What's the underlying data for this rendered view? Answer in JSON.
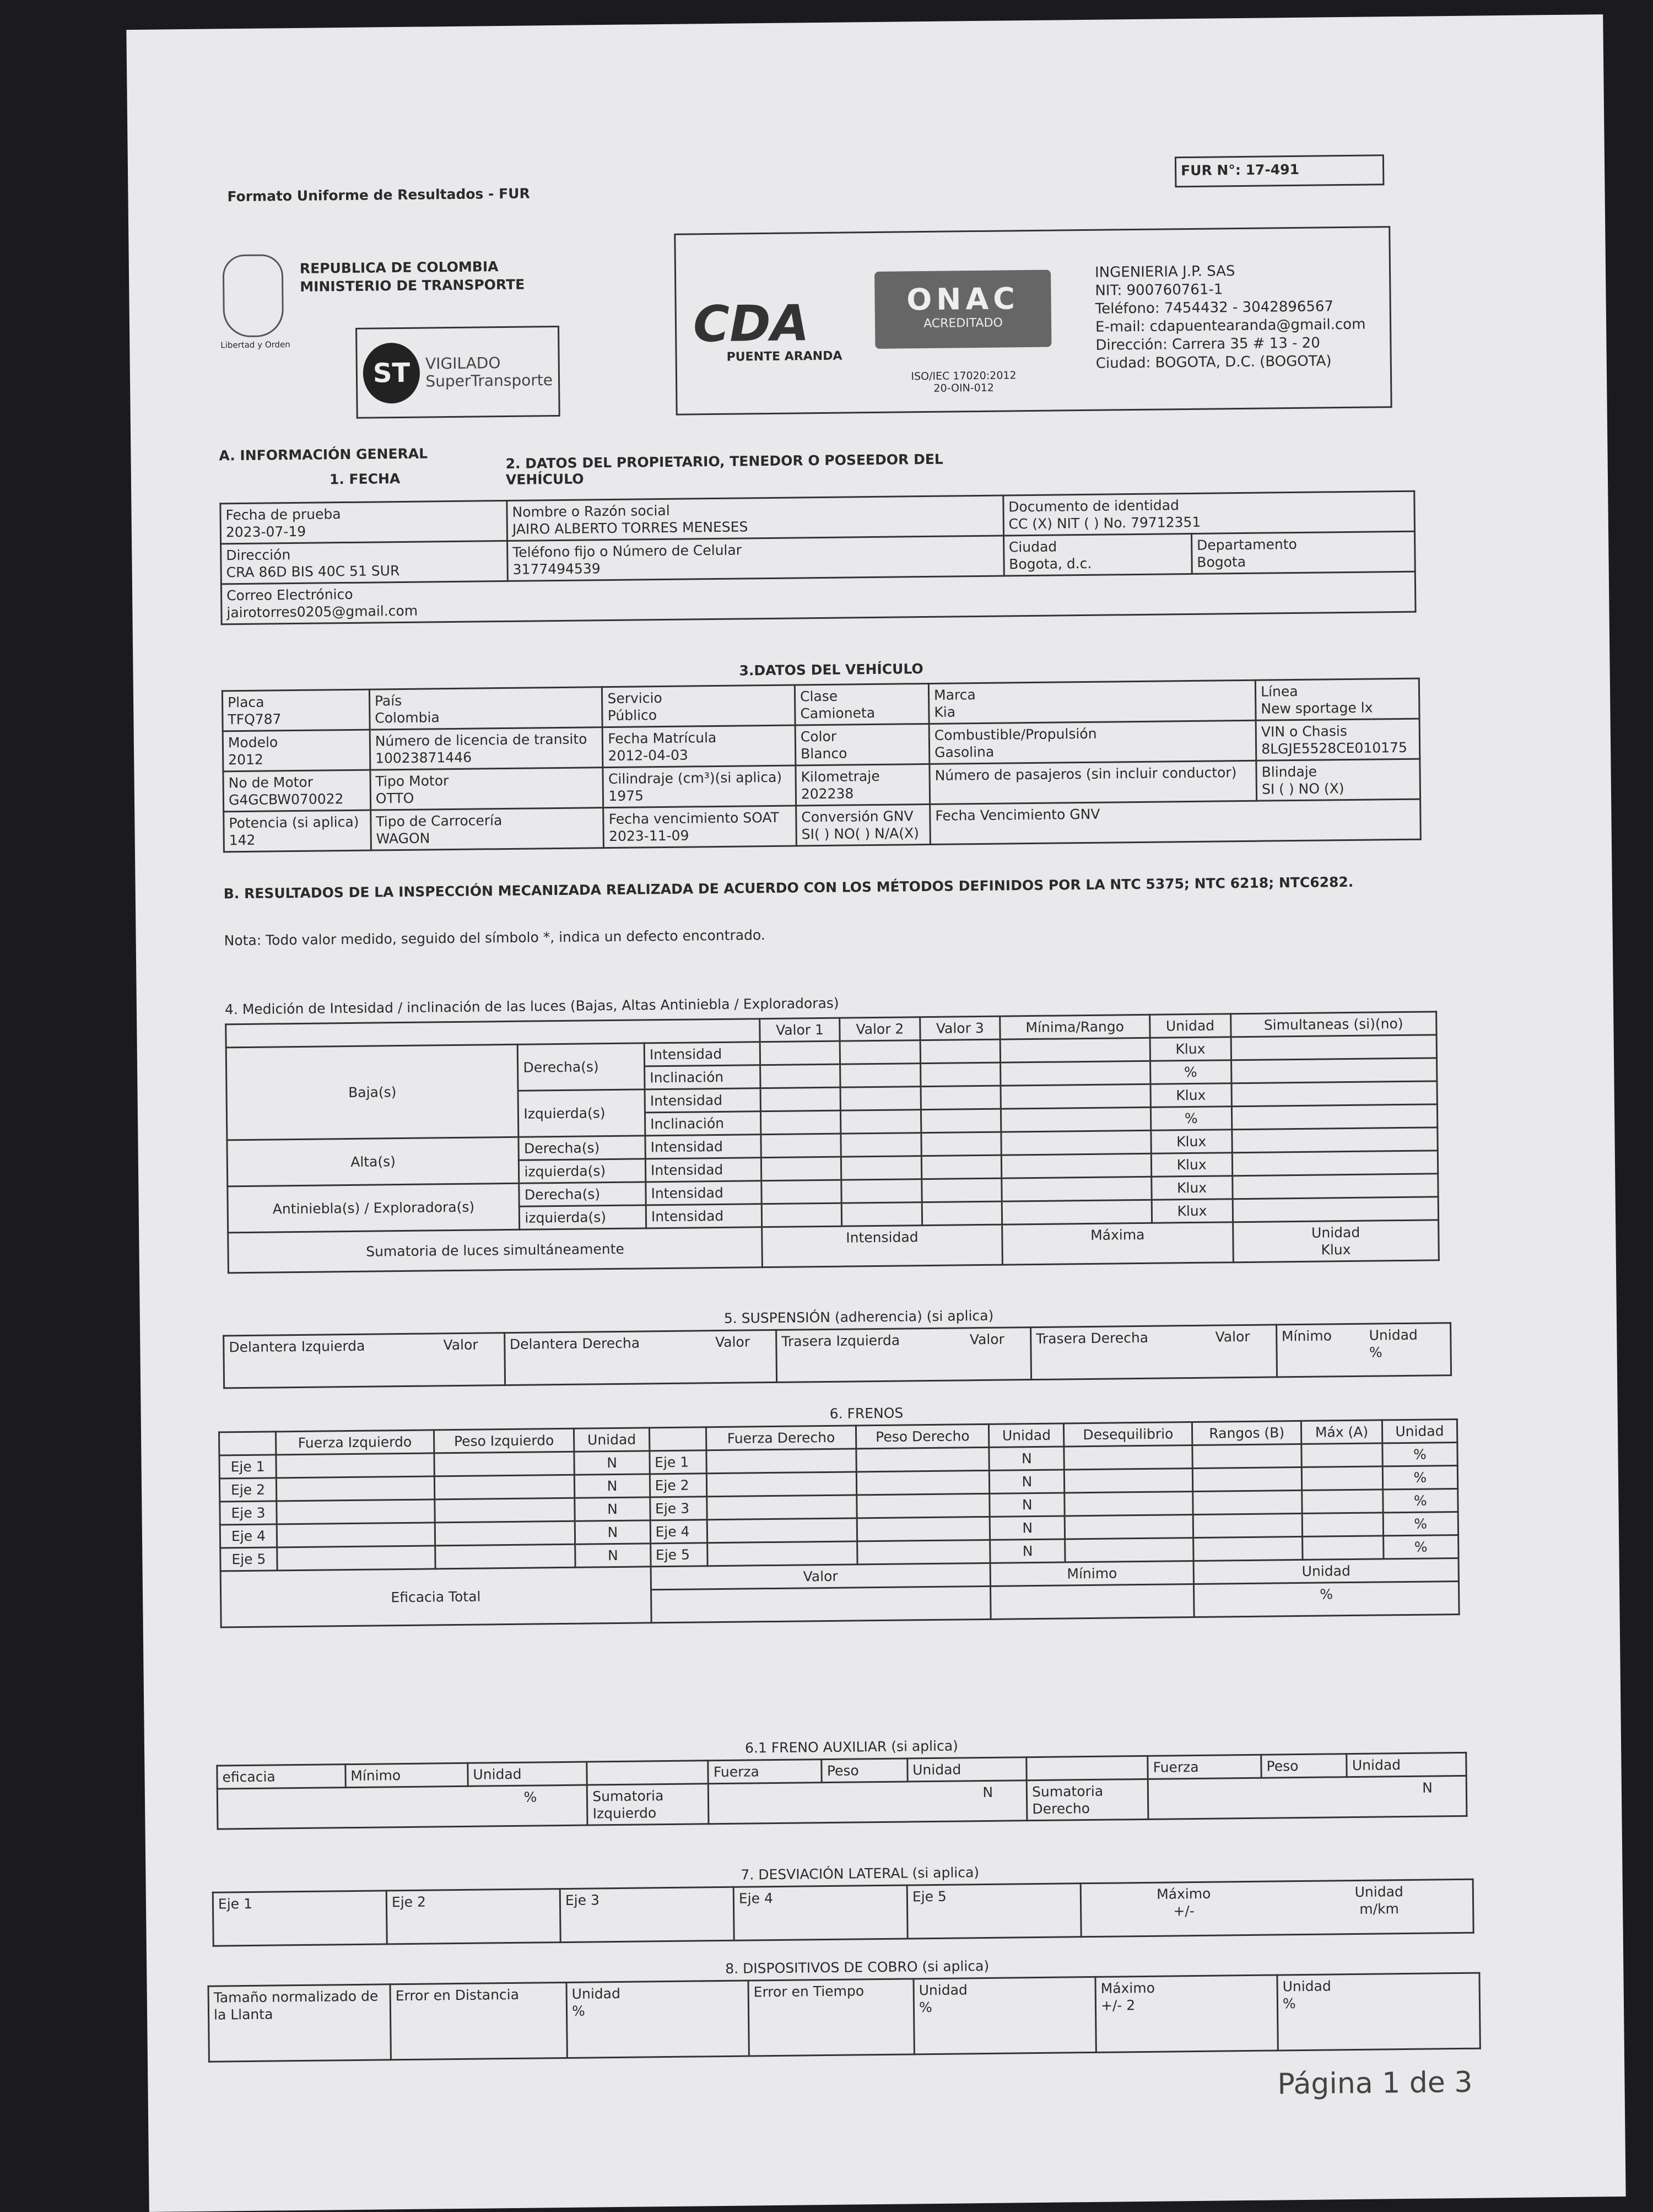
{
  "header": {
    "title": "Formato Uniforme de Resultados - FUR",
    "fur_number": "FUR N°: 17-491",
    "gov_line1": "REPUBLICA DE COLOMBIA",
    "gov_line2": "MINISTERIO DE TRANSPORTE",
    "crest_caption": "Libertad y Orden",
    "st_logo": "ST",
    "st_line1": "VIGILADO",
    "st_line2": "SuperTransporte",
    "cda_logo": "CDA",
    "cda_sub": "PUENTE ARANDA",
    "onac_logo": "ONAC",
    "onac_sub": "ACREDITADO",
    "iso_line1": "ISO/IEC 17020:2012",
    "iso_line2": "20-OIN-012",
    "company": [
      "INGENIERIA J.P. SAS",
      "NIT: 900760761-1",
      "Teléfono: 7454432 - 3042896567",
      "E-mail: cdapuentearanda@gmail.com",
      "Dirección: Carrera 35 # 13 - 20",
      "Ciudad: BOGOTA, D.C. (BOGOTA)"
    ]
  },
  "section_a": {
    "title": "A. INFORMACIÓN GENERAL",
    "fecha_title": "1. FECHA",
    "owner_title": "2. DATOS DEL PROPIETARIO, TENEDOR O POSEEDOR DEL VEHÍCULO",
    "fields": [
      {
        "label": "Fecha de prueba",
        "value": "2023-07-19"
      },
      {
        "label": "Nombre o Razón social",
        "value": "JAIRO ALBERTO TORRES MENESES"
      },
      {
        "label": "Documento de identidad",
        "value": "CC (X) NIT ( ) No. 79712351"
      },
      {
        "label": "Dirección",
        "value": "CRA 86D BIS 40C 51 SUR"
      },
      {
        "label": "Teléfono fijo o Número de Celular",
        "value": "3177494539"
      },
      {
        "label": "Ciudad",
        "value": "Bogota, d.c."
      },
      {
        "label": "Departamento",
        "value": "Bogota"
      },
      {
        "label": "Correo Electrónico",
        "value": "jairotorres0205@gmail.com"
      }
    ]
  },
  "vehicle": {
    "title": "3.DATOS DEL VEHÍCULO",
    "fields": [
      {
        "label": "Placa",
        "value": "TFQ787"
      },
      {
        "label": "País",
        "value": "Colombia"
      },
      {
        "label": "Servicio",
        "value": "Público"
      },
      {
        "label": "Clase",
        "value": "Camioneta"
      },
      {
        "label": "Marca",
        "value": "Kia"
      },
      {
        "label": "Línea",
        "value": "New sportage lx"
      },
      {
        "label": "Modelo",
        "value": "2012"
      },
      {
        "label": "Número de licencia de transito",
        "value": "10023871446"
      },
      {
        "label": "Fecha Matrícula",
        "value": "2012-04-03"
      },
      {
        "label": "Color",
        "value": "Blanco"
      },
      {
        "label": "Combustible/Propulsión",
        "value": "Gasolina"
      },
      {
        "label": "VIN o Chasis",
        "value": "8LGJE5528CE010175"
      },
      {
        "label": "No de Motor",
        "value": "G4GCBW070022"
      },
      {
        "label": "Tipo Motor",
        "value": "OTTO"
      },
      {
        "label": "Cilindraje (cm³)(si aplica)",
        "value": "1975"
      },
      {
        "label": "Kilometraje",
        "value": "202238"
      },
      {
        "label": "Número de pasajeros (sin incluir conductor)",
        "value": ""
      },
      {
        "label": "Blindaje",
        "value": "SI ( ) NO (X)"
      },
      {
        "label": "Potencia (si aplica)",
        "value": "142"
      },
      {
        "label": "Tipo de Carrocería",
        "value": "WAGON"
      },
      {
        "label": "Fecha vencimiento SOAT",
        "value": "2023-11-09"
      },
      {
        "label": "Conversión GNV",
        "value": "SI( ) NO( ) N/A(X)"
      },
      {
        "label": "Fecha Vencimiento GNV",
        "value": ""
      }
    ]
  },
  "section_b": {
    "title": "B. RESULTADOS DE LA INSPECCIÓN MECANIZADA REALIZADA DE ACUERDO CON LOS MÉTODOS DEFINIDOS POR LA NTC 5375; NTC 6218; NTC6282.",
    "note": "Nota: Todo valor medido, seguido del símbolo *, indica un defecto encontrado."
  },
  "lights": {
    "title": "4. Medición de Intesidad / inclinación de las luces (Bajas, Altas Antiniebla / Exploradoras)",
    "headers": [
      "Valor 1",
      "Valor 2",
      "Valor 3",
      "Mínima/Rango",
      "Unidad",
      "Simultaneas (si)(no)"
    ],
    "groups": [
      "Baja(s)",
      "Alta(s)",
      "Antiniebla(s) / Exploradora(s)"
    ],
    "rows": [
      {
        "side": "Derecha(s)",
        "type": "Intensidad",
        "unit": "Klux"
      },
      {
        "side": "",
        "type": "Inclinación",
        "unit": "%"
      },
      {
        "side": "Izquierda(s)",
        "type": "Intensidad",
        "unit": "Klux"
      },
      {
        "side": "",
        "type": "Inclinación",
        "unit": "%"
      },
      {
        "side": "Derecha(s)",
        "type": "Intensidad",
        "unit": "Klux"
      },
      {
        "side": "izquierda(s)",
        "type": "Intensidad",
        "unit": "Klux"
      },
      {
        "side": "Derecha(s)",
        "type": "Intensidad",
        "unit": "Klux"
      },
      {
        "side": "izquierda(s)",
        "type": "Intensidad",
        "unit": "Klux"
      }
    ],
    "sum_label": "Sumatoria de luces simultáneamente",
    "sum_intensity": "Intensidad",
    "sum_max": "Máxima",
    "sum_unit": "Unidad",
    "sum_unit_val": "Klux"
  },
  "suspension": {
    "title": "5. SUSPENSIÓN (adherencia) (si aplica)",
    "cells": [
      "Delantera Izquierda",
      "Valor",
      "Delantera Derecha",
      "Valor",
      "Trasera Izquierda",
      "Valor",
      "Trasera Derecha",
      "Valor",
      "Mínimo",
      "Unidad"
    ],
    "unit": "%"
  },
  "brakes": {
    "title": "6. FRENOS",
    "headers": [
      "Fuerza Izquierdo",
      "Peso Izquierdo",
      "Unidad",
      "",
      "Fuerza Derecho",
      "Peso Derecho",
      "Unidad",
      "Desequilibrio",
      "Rangos (B)",
      "Máx (A)",
      "Unidad"
    ],
    "axes": [
      "Eje 1",
      "Eje 2",
      "Eje 3",
      "Eje 4",
      "Eje 5"
    ],
    "force_unit": "N",
    "pct_unit": "%",
    "total_label": "Eficacia Total",
    "total_value": "Valor",
    "total_min": "Mínimo",
    "total_unit": "Unidad"
  },
  "aux_brake": {
    "title": "6.1 FRENO AUXILIAR (si aplica)",
    "eficacia": "eficacia",
    "minimo": "Mínimo",
    "unidad": "Unidad",
    "fuerza": "Fuerza",
    "peso": "Peso",
    "sum_left": "Sumatoria Izquierdo",
    "sum_right": "Sumatoria Derecho",
    "pct": "%",
    "n": "N"
  },
  "deviation": {
    "title": "7. DESVIACIÓN LATERAL (si aplica)",
    "axes": [
      "Eje 1",
      "Eje 2",
      "Eje 3",
      "Eje 4",
      "Eje 5"
    ],
    "max": "Máximo",
    "max_sub": "+/-",
    "unit": "Unidad",
    "unit_sub": "m/km"
  },
  "meters": {
    "title": "8. DISPOSITIVOS DE COBRO (si aplica)",
    "tire": "Tamaño normalizado de la Llanta",
    "dist_err": "Error en Distancia",
    "time_err": "Error en Tiempo",
    "unit": "Unidad",
    "max": "Máximo",
    "max_val": "+/- 2",
    "pct": "%"
  },
  "footer": {
    "page": "Página 1 de 3"
  }
}
